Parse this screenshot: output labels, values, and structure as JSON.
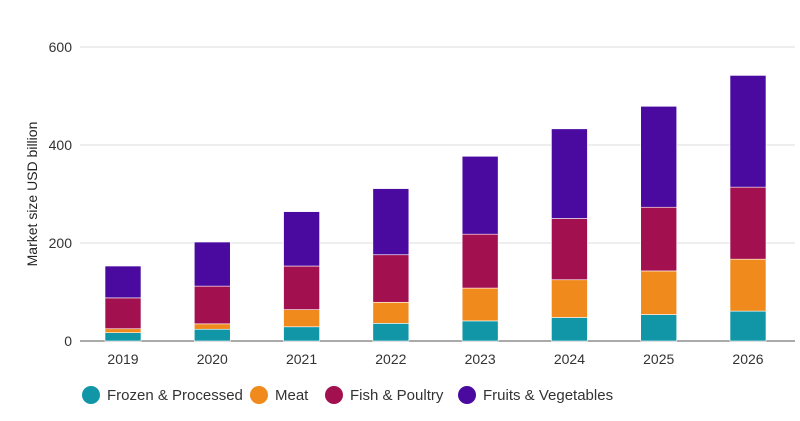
{
  "chart_data": {
    "type": "bar",
    "stacked": true,
    "title": "",
    "xlabel": "",
    "ylabel": "Market size USD billion",
    "ylim": [
      0,
      600
    ],
    "yticks": [
      0,
      200,
      400,
      600
    ],
    "grid": true,
    "legend_position": "bottom",
    "categories": [
      "2019",
      "2020",
      "2021",
      "2022",
      "2023",
      "2024",
      "2025",
      "2026"
    ],
    "series": [
      {
        "name": "Frozen & Processed",
        "color": "#1196a8",
        "values": [
          17,
          24,
          29,
          36,
          41,
          48,
          54,
          61
        ]
      },
      {
        "name": "Meat",
        "color": "#f18a1c",
        "values": [
          8,
          11,
          35,
          43,
          67,
          77,
          89,
          106
        ]
      },
      {
        "name": "Fish & Poultry",
        "color": "#a3104f",
        "values": [
          63,
          77,
          89,
          97,
          110,
          125,
          130,
          147
        ]
      },
      {
        "name": "Fruits & Vegetables",
        "color": "#4a0aa0",
        "values": [
          65,
          90,
          111,
          135,
          159,
          183,
          206,
          228
        ]
      }
    ]
  }
}
